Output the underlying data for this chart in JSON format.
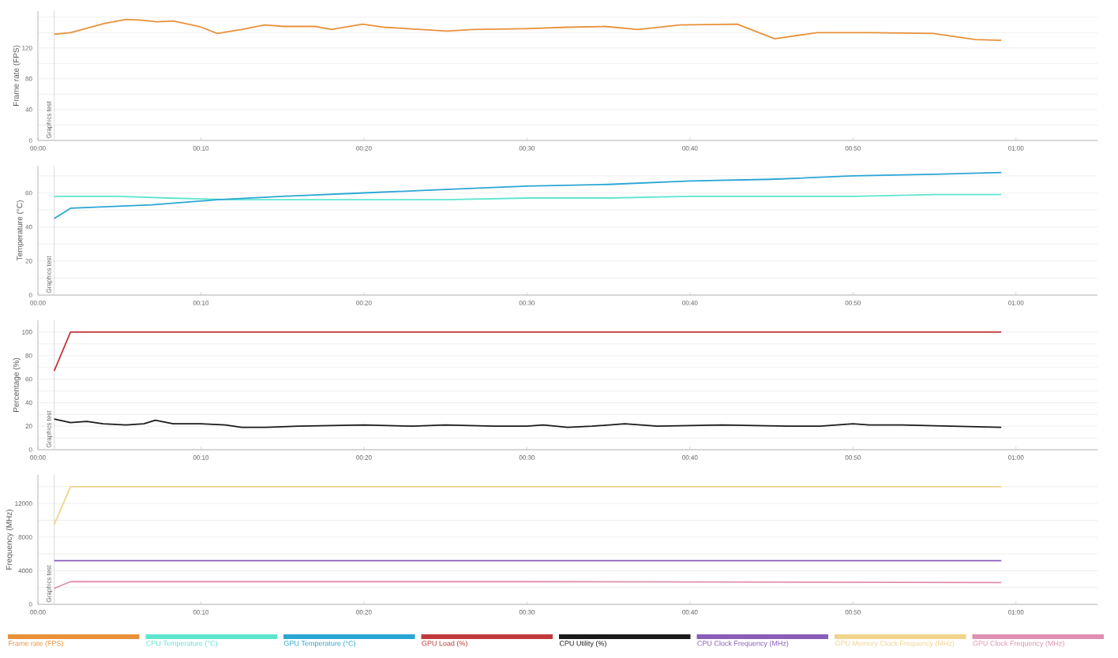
{
  "chart_data": [
    {
      "type": "line",
      "ylabel": "Frame rate (FPS)",
      "xlim": [
        0,
        65
      ],
      "ylim": [
        0,
        168
      ],
      "grid": "y",
      "legend": "bottom",
      "xticks": [
        {
          "value": 0,
          "label": "00:00"
        },
        {
          "value": 10,
          "label": "00:10"
        },
        {
          "value": 20,
          "label": "00:20"
        },
        {
          "value": 30,
          "label": "00:30"
        },
        {
          "value": 40,
          "label": "00:40"
        },
        {
          "value": 50,
          "label": "00:50"
        },
        {
          "value": 60,
          "label": "01:00"
        }
      ],
      "yticks": [
        0,
        {
          "value": 20,
          "label": null
        },
        40,
        {
          "value": 60,
          "label": null
        },
        80,
        {
          "value": 100,
          "label": null
        },
        120,
        {
          "value": 140,
          "label": null
        },
        {
          "value": 160,
          "label": null
        }
      ],
      "ref_lines": [
        {
          "axis": "x",
          "value": 1,
          "label": "Graphics test",
          "color": "#d0d0d0"
        }
      ],
      "series": [
        {
          "name": "Frame rate (FPS)",
          "color": "#e8913a",
          "x": [
            1.0,
            2.0,
            4.1,
            5.4,
            6.4,
            7.3,
            8.3,
            9.9,
            11.0,
            12.5,
            13.9,
            15.1,
            17.0,
            18.0,
            19.9,
            21.2,
            25.1,
            26.7,
            29.9,
            32.5,
            34.8,
            36.8,
            39.4,
            42.9,
            45.2,
            47.8,
            51.0,
            54.9,
            57.5,
            59.1
          ],
          "values": [
            138,
            140,
            152,
            157,
            156,
            154,
            155,
            148,
            139,
            144,
            150,
            148,
            148,
            144,
            151,
            147,
            142,
            144,
            145,
            147,
            148,
            144,
            150,
            151,
            132,
            140,
            140,
            139,
            131,
            130
          ]
        }
      ]
    },
    {
      "type": "line",
      "ylabel": "Temperature (°C)",
      "xlim": [
        0,
        65
      ],
      "ylim": [
        0,
        76
      ],
      "grid": "y",
      "legend": "bottom",
      "xticks": [
        {
          "value": 0,
          "label": "00:00"
        },
        {
          "value": 10,
          "label": "00:10"
        },
        {
          "value": 20,
          "label": "00:20"
        },
        {
          "value": 30,
          "label": "00:30"
        },
        {
          "value": 40,
          "label": "00:40"
        },
        {
          "value": 50,
          "label": "00:50"
        },
        {
          "value": 60,
          "label": "01:00"
        }
      ],
      "yticks": [
        0,
        {
          "value": 10,
          "label": null
        },
        20,
        {
          "value": 30,
          "label": null
        },
        40,
        {
          "value": 50,
          "label": null
        },
        60,
        {
          "value": 70,
          "label": null
        }
      ],
      "ref_lines": [
        {
          "axis": "x",
          "value": 1,
          "label": "Graphics test",
          "color": "#d0d0d0"
        }
      ],
      "series": [
        {
          "name": "CPU Temperature (°C)",
          "color": "#5de6cf",
          "x": [
            1.0,
            5.0,
            8.0,
            12.0,
            16.0,
            20.0,
            25.0,
            30.0,
            35.0,
            40.0,
            45.0,
            50.0,
            55.0,
            59.1
          ],
          "values": [
            58,
            58,
            57,
            56,
            56,
            56,
            56,
            57,
            57,
            58,
            58,
            58,
            59,
            59
          ]
        },
        {
          "name": "GPU Temperature (°C)",
          "color": "#2aa6d4",
          "x": [
            1.0,
            2.0,
            7.0,
            11.0,
            15.0,
            20.0,
            25.0,
            30.0,
            35.0,
            40.0,
            45.0,
            50.0,
            55.0,
            59.1
          ],
          "values": [
            45,
            51,
            53,
            56,
            58,
            60,
            62,
            64,
            65,
            67,
            68,
            70,
            71,
            72
          ]
        }
      ]
    },
    {
      "type": "line",
      "ylabel": "Percentage (%)",
      "xlim": [
        0,
        65
      ],
      "ylim": [
        0,
        110
      ],
      "grid": "y",
      "legend": "bottom",
      "xticks": [
        {
          "value": 0,
          "label": "00:00"
        },
        {
          "value": 10,
          "label": "00:10"
        },
        {
          "value": 20,
          "label": "00:20"
        },
        {
          "value": 30,
          "label": "00:30"
        },
        {
          "value": 40,
          "label": "00:40"
        },
        {
          "value": 50,
          "label": "00:50"
        },
        {
          "value": 60,
          "label": "01:00"
        }
      ],
      "yticks": [
        0,
        {
          "value": 10,
          "label": null
        },
        20,
        {
          "value": 30,
          "label": null
        },
        40,
        {
          "value": 50,
          "label": null
        },
        60,
        {
          "value": 70,
          "label": null
        },
        80,
        {
          "value": 90,
          "label": null
        },
        100
      ],
      "ref_lines": [
        {
          "axis": "x",
          "value": 1,
          "label": "Graphics test",
          "color": "#d0d0d0"
        }
      ],
      "series": [
        {
          "name": "GPU Load (%)",
          "color": "#c0393b",
          "x": [
            1.0,
            2.0,
            59.1
          ],
          "values": [
            67,
            100,
            100
          ]
        },
        {
          "name": "CPU Utility (%)",
          "color": "#1a1a1a",
          "x": [
            1.0,
            2.0,
            3.0,
            4.0,
            5.4,
            6.5,
            7.2,
            8.3,
            10.0,
            11.5,
            12.5,
            14.0,
            16.0,
            20.0,
            23.0,
            25.0,
            28.0,
            30.0,
            31.0,
            32.5,
            34.0,
            36.0,
            38.0,
            42.0,
            46.0,
            48.0,
            50.0,
            51.0,
            53.0,
            56.0,
            59.1
          ],
          "values": [
            26,
            23,
            24,
            22,
            21,
            22,
            25,
            22,
            22,
            21,
            19,
            19,
            20,
            21,
            20,
            21,
            20,
            20,
            21,
            19,
            20,
            22,
            20,
            21,
            20,
            20,
            22,
            21,
            21,
            20,
            19
          ]
        }
      ]
    },
    {
      "type": "line",
      "ylabel": "Frequency (MHz)",
      "xlim": [
        0,
        65
      ],
      "ylim": [
        0,
        15400
      ],
      "grid": "y",
      "legend": "bottom",
      "xticks": [
        {
          "value": 0,
          "label": "00:00"
        },
        {
          "value": 10,
          "label": "00:10"
        },
        {
          "value": 20,
          "label": "00:20"
        },
        {
          "value": 30,
          "label": "00:30"
        },
        {
          "value": 40,
          "label": "00:40"
        },
        {
          "value": 50,
          "label": "00:50"
        },
        {
          "value": 60,
          "label": "01:00"
        }
      ],
      "yticks": [
        0,
        {
          "value": 2000,
          "label": null
        },
        4000,
        {
          "value": 6000,
          "label": null
        },
        8000,
        {
          "value": 10000,
          "label": null
        },
        12000,
        {
          "value": 14000,
          "label": null
        }
      ],
      "ref_lines": [
        {
          "axis": "x",
          "value": 1,
          "label": "Graphics test",
          "color": "#d0d0d0"
        }
      ],
      "series": [
        {
          "name": "CPU Clock Frequency (MHz)",
          "color": "#8a5db8",
          "x": [
            1.0,
            59.1
          ],
          "values": [
            5200,
            5200
          ]
        },
        {
          "name": "GPU Memory Clock Frequency (MHz)",
          "color": "#f0d48a",
          "x": [
            1.0,
            2.0,
            59.1
          ],
          "values": [
            9500,
            14000,
            14000
          ]
        },
        {
          "name": "GPU Clock Frequency (MHz)",
          "color": "#e090b0",
          "x": [
            1.0,
            2.0,
            30.0,
            59.1
          ],
          "values": [
            1900,
            2700,
            2700,
            2600
          ]
        }
      ]
    }
  ]
}
